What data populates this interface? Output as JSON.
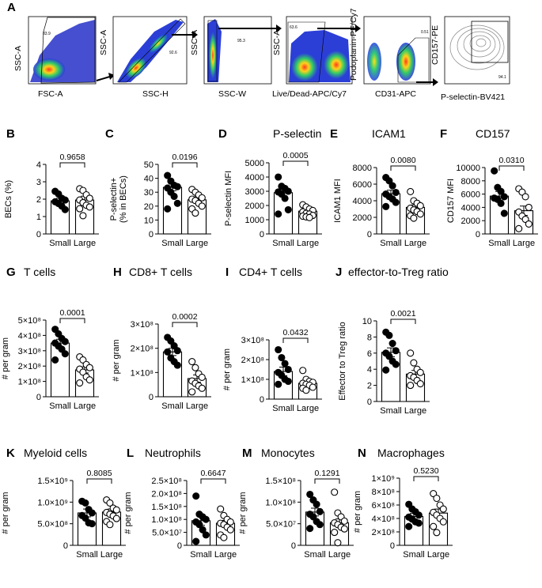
{
  "figure": {
    "flow": {
      "label": "A",
      "panels": [
        {
          "y": "SSC-A",
          "x": "FSC-A",
          "gate": "83.9"
        },
        {
          "y": "SSC-A",
          "x": "SSC-H",
          "gate": "92.6"
        },
        {
          "y": "SSC-A",
          "x": "SSC-W",
          "gate": "95.3"
        },
        {
          "y": "SSC-A",
          "x": "Live/Dead-APC/Cy7",
          "gate": "63.6"
        },
        {
          "y": "Podoplanin-PE/Cy7",
          "x": "CD31-APC",
          "gate": "0.51"
        },
        {
          "y": "CD157-PE",
          "x": "P-selectin-BV421",
          "gate": "94.1"
        }
      ]
    }
  },
  "chart_data": [
    {
      "type": "bar",
      "label": "B",
      "title": "",
      "ylabel": "BECs (%)",
      "yticks": [
        "0",
        "1",
        "2",
        "3",
        "4"
      ],
      "ytick_values": [
        0,
        1,
        2,
        3,
        4
      ],
      "ylim": [
        0,
        4
      ],
      "categories": [
        "Small",
        "Large"
      ],
      "means": [
        1.9,
        1.95
      ],
      "sems": [
        0.15,
        0.22
      ],
      "pvalue": "0.9658",
      "points": [
        [
          2.45,
          2.3,
          2.05,
          1.95,
          1.85,
          1.75,
          1.6,
          1.4
        ],
        [
          2.6,
          2.5,
          2.25,
          2.05,
          1.95,
          1.8,
          1.65,
          1.55,
          1.45,
          1.05
        ]
      ]
    },
    {
      "type": "bar",
      "label": "C",
      "title": "",
      "ylabel": "P-selectin+ (% in BECs)",
      "yticks": [
        "0",
        "10",
        "20",
        "30",
        "40",
        "50"
      ],
      "ytick_values": [
        0,
        10,
        20,
        30,
        40,
        50
      ],
      "ylim": [
        0,
        50
      ],
      "categories": [
        "Small",
        "Large"
      ],
      "means": [
        33.5,
        24.5
      ],
      "sems": [
        2.4,
        2.2
      ],
      "pvalue": "0.0196",
      "points": [
        [
          42,
          38,
          35,
          34,
          33,
          30,
          27,
          22,
          18
        ],
        [
          32,
          30,
          28,
          26,
          25,
          24,
          22,
          20,
          18,
          15
        ]
      ]
    },
    {
      "type": "bar",
      "label": "D",
      "title": "P-selectin",
      "ylabel": "P-selectin MFI",
      "yticks": [
        "0",
        "1000",
        "2000",
        "3000",
        "4000",
        "5000"
      ],
      "ytick_values": [
        0,
        1000,
        2000,
        3000,
        4000,
        5000
      ],
      "ylim": [
        0,
        5000
      ],
      "categories": [
        "Small",
        "Large"
      ],
      "means": [
        2900,
        1600
      ],
      "sems": [
        230,
        80
      ],
      "pvalue": "0.0005",
      "points": [
        [
          4000,
          3350,
          3200,
          3000,
          2950,
          2800,
          2500,
          1700,
          1400
        ],
        [
          2050,
          1900,
          1750,
          1650,
          1550,
          1450,
          1400,
          1300,
          1250,
          1200,
          1150
        ]
      ]
    },
    {
      "type": "bar",
      "label": "E",
      "title": "ICAM1",
      "ylabel": "ICAM1 MFI",
      "yticks": [
        "0",
        "2000",
        "4000",
        "6000",
        "8000"
      ],
      "ytick_values": [
        0,
        2000,
        4000,
        6000,
        8000
      ],
      "ylim": [
        0,
        8000
      ],
      "categories": [
        "Small",
        "Large"
      ],
      "means": [
        4850,
        3200
      ],
      "sems": [
        420,
        300
      ],
      "pvalue": "0.0080",
      "points": [
        [
          6800,
          6400,
          5800,
          5000,
          4800,
          4500,
          4200,
          3800,
          3300
        ],
        [
          5100,
          4000,
          3700,
          3400,
          3100,
          2900,
          2700,
          2400,
          2200,
          1900
        ]
      ]
    },
    {
      "type": "bar",
      "label": "F",
      "title": "CD157",
      "ylabel": "CD157 MFI",
      "yticks": [
        "0",
        "2000",
        "4000",
        "6000",
        "8000",
        "10000"
      ],
      "ytick_values": [
        0,
        2000,
        4000,
        6000,
        8000,
        10000
      ],
      "ylim": [
        0,
        10000
      ],
      "categories": [
        "Small",
        "Large"
      ],
      "means": [
        5700,
        3500
      ],
      "sems": [
        700,
        700
      ],
      "pvalue": "0.0310",
      "points": [
        [
          9500,
          7000,
          6400,
          5600,
          5400,
          5200,
          4600,
          3100
        ],
        [
          6800,
          6300,
          5600,
          4000,
          3300,
          2700,
          2200,
          1500,
          800
        ]
      ]
    },
    {
      "type": "bar",
      "label": "G",
      "title": "T cells",
      "ylabel": "# per gram",
      "yticks": [
        "0",
        "1×10⁸",
        "2×10⁸",
        "3×10⁸",
        "4×10⁸",
        "5×10⁸"
      ],
      "ytick_values": [
        0,
        1,
        2,
        3,
        4,
        5
      ],
      "ylim": [
        0,
        5
      ],
      "categories": [
        "Small",
        "Large"
      ],
      "means": [
        3.5,
        1.75
      ],
      "sems": [
        0.25,
        0.2
      ],
      "pvalue": "0.0001",
      "points": [
        [
          4.4,
          4.1,
          3.8,
          3.6,
          3.5,
          3.3,
          3.1,
          2.8,
          2.4
        ],
        [
          2.6,
          2.4,
          2.1,
          1.9,
          1.8,
          1.6,
          1.3,
          1.1,
          0.9
        ]
      ]
    },
    {
      "type": "bar",
      "label": "H",
      "title": "CD8+ T cells",
      "ylabel": "# per gram",
      "yticks": [
        "0",
        "1×10⁸",
        "2×10⁸",
        "3×10⁸"
      ],
      "ytick_values": [
        0,
        1,
        2,
        3
      ],
      "ylim": [
        0,
        3
      ],
      "categories": [
        "Small",
        "Large"
      ],
      "means": [
        1.85,
        0.75
      ],
      "sems": [
        0.15,
        0.15
      ],
      "pvalue": "0.0002",
      "points": [
        [
          2.45,
          2.3,
          2.1,
          1.9,
          1.85,
          1.6,
          1.45,
          1.3
        ],
        [
          1.45,
          1.2,
          0.95,
          0.8,
          0.65,
          0.55,
          0.45,
          0.35,
          0.2
        ]
      ]
    },
    {
      "type": "bar",
      "label": "I",
      "title": "CD4+ T cells",
      "ylabel": "# per gram",
      "yticks": [
        "0",
        "1×10⁸",
        "2×10⁸",
        "3×10⁸"
      ],
      "ytick_values": [
        0,
        1,
        2,
        3
      ],
      "ylim": [
        0,
        3
      ],
      "categories": [
        "Small",
        "Large"
      ],
      "means": [
        1.4,
        0.8
      ],
      "sems": [
        0.22,
        0.1
      ],
      "pvalue": "0.0432",
      "points": [
        [
          2.5,
          2.1,
          1.8,
          1.5,
          1.35,
          1.2,
          1.0,
          0.9,
          0.75
        ],
        [
          1.45,
          1.0,
          0.9,
          0.85,
          0.8,
          0.75,
          0.7,
          0.6,
          0.55,
          0.45
        ]
      ]
    },
    {
      "type": "bar",
      "label": "J",
      "title": "effector-to-Treg ratio",
      "ylabel": "Effector to Treg ratio",
      "yticks": [
        "0",
        "2",
        "4",
        "6",
        "8",
        "10"
      ],
      "ytick_values": [
        0,
        2,
        4,
        6,
        8,
        10
      ],
      "ylim": [
        0,
        10
      ],
      "categories": [
        "Small",
        "Large"
      ],
      "means": [
        6.1,
        3.4
      ],
      "sems": [
        0.55,
        0.45
      ],
      "pvalue": "0.0021",
      "points": [
        [
          8.6,
          8.2,
          7.2,
          6.3,
          6.0,
          5.6,
          5.0,
          4.6,
          3.9
        ],
        [
          6.0,
          4.8,
          4.0,
          3.6,
          3.2,
          3.0,
          2.6,
          2.2,
          2.0
        ]
      ]
    },
    {
      "type": "bar",
      "label": "K",
      "title": "Myeloid cells",
      "ylabel": "# per gram",
      "yticks": [
        "0",
        "5.0×10⁸",
        "1.0×10⁹",
        "1.5×10⁹"
      ],
      "ytick_values": [
        0,
        5,
        10,
        15
      ],
      "ylim": [
        0,
        15
      ],
      "categories": [
        "Small",
        "Large"
      ],
      "means": [
        7.5,
        7.7
      ],
      "sems": [
        0.9,
        0.7
      ],
      "pvalue": "0.8085",
      "points": [
        [
          10.2,
          9.8,
          8.3,
          7.5,
          6.9,
          6.3,
          5.2,
          5.0
        ],
        [
          10.5,
          9.8,
          8.6,
          8.2,
          7.6,
          7.2,
          6.8,
          6.2,
          5.5,
          4.8
        ]
      ]
    },
    {
      "type": "bar",
      "label": "L",
      "title": "Neutrophils",
      "ylabel": "# per gram",
      "yticks": [
        "0",
        "5.0×10⁷",
        "1.0×10⁸",
        "1.5×10⁸",
        "2.0×10⁸",
        "2.5×10⁸"
      ],
      "ytick_values": [
        0,
        5,
        10,
        15,
        20,
        25
      ],
      "ylim": [
        0,
        25
      ],
      "categories": [
        "Small",
        "Large"
      ],
      "means": [
        9.5,
        8.5
      ],
      "sems": [
        1.8,
        1.1
      ],
      "pvalue": "0.6647",
      "points": [
        [
          19,
          12,
          11,
          10,
          9,
          8,
          6,
          4,
          1.5
        ],
        [
          14,
          11.5,
          10,
          9,
          8.5,
          8,
          7,
          6,
          4,
          3
        ]
      ]
    },
    {
      "type": "bar",
      "label": "M",
      "title": "Monocytes",
      "ylabel": "# per gram",
      "yticks": [
        "0",
        "5.0×10⁷",
        "1.0×10⁸",
        "1.5×10⁸"
      ],
      "ytick_values": [
        0,
        5,
        10,
        15
      ],
      "ylim": [
        0,
        15
      ],
      "categories": [
        "Small",
        "Large"
      ],
      "means": [
        7.7,
        5.2
      ],
      "sems": [
        0.9,
        0.9
      ],
      "pvalue": "0.1291",
      "points": [
        [
          11.8,
          10.5,
          9.5,
          7.8,
          7.2,
          6.6,
          5.5,
          4.8,
          3.9
        ],
        [
          12.3,
          7.5,
          6.6,
          5.6,
          5.2,
          4.8,
          4.2,
          3.8,
          3.0,
          0.6
        ]
      ]
    },
    {
      "type": "bar",
      "label": "N",
      "title": "Macrophages",
      "ylabel": "# per gram",
      "yticks": [
        "0",
        "2×10⁸",
        "4×10⁸",
        "6×10⁸",
        "8×10⁸",
        "1×10⁹"
      ],
      "ytick_values": [
        0,
        2,
        4,
        6,
        8,
        10
      ],
      "ylim": [
        0,
        10
      ],
      "categories": [
        "Small",
        "Large"
      ],
      "means": [
        4.3,
        4.8
      ],
      "sems": [
        0.45,
        0.6
      ],
      "pvalue": "0.5230",
      "points": [
        [
          6.1,
          5.4,
          5.0,
          4.5,
          4.2,
          3.9,
          3.5,
          3.3,
          2.8
        ],
        [
          7.7,
          7.0,
          6.0,
          5.4,
          4.9,
          4.5,
          4.0,
          3.5,
          2.8,
          1.9
        ]
      ]
    }
  ]
}
